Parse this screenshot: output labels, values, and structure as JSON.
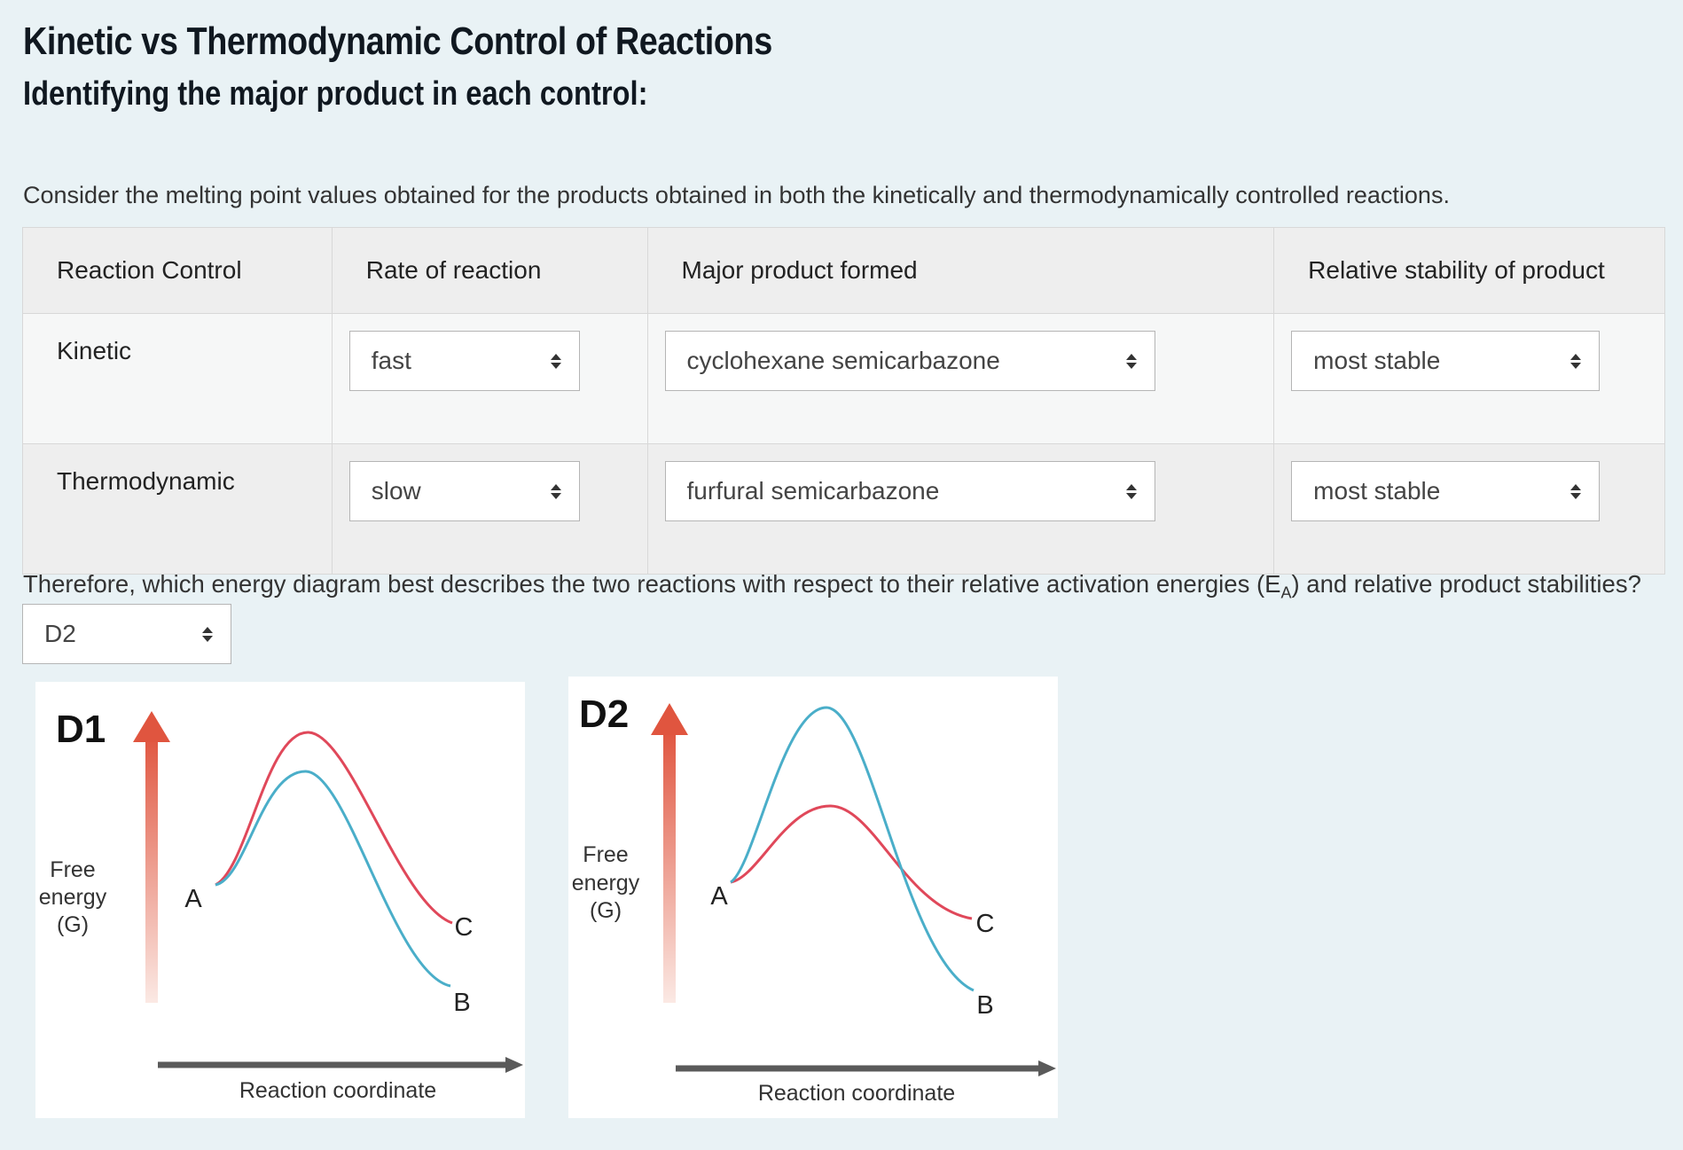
{
  "page": {
    "title": "Kinetic vs Thermodynamic Control of Reactions",
    "subtitle": "Identifying the major product in each control:",
    "intro": "Consider the melting point values obtained for the products obtained in both the kinetically and thermodynamically controlled reactions."
  },
  "table": {
    "headers": [
      "Reaction Control",
      "Rate of reaction",
      "Major product formed",
      "Relative stability of product"
    ],
    "rows": [
      {
        "control": "Kinetic",
        "rate": "fast",
        "product": "cyclohexane semicarbazone",
        "stability": "most stable"
      },
      {
        "control": "Thermodynamic",
        "rate": "slow",
        "product": "furfural semicarbazone",
        "stability": "most stable"
      }
    ]
  },
  "question": {
    "text_before": "Therefore, which energy diagram best describes the two reactions with respect to their relative activation energies (E",
    "subscript": "A",
    "text_after": ") and relative product stabilities?",
    "selected": "D2"
  },
  "diagrams": [
    {
      "label": "D1",
      "ylabel_line1": "Free",
      "ylabel_line2": "energy",
      "ylabel_line3": "(G)",
      "xlabel": "Reaction coordinate",
      "point_a": "A",
      "point_b": "B",
      "point_c": "C"
    },
    {
      "label": "D2",
      "ylabel_line1": "Free",
      "ylabel_line2": "energy",
      "ylabel_line3": "(G)",
      "xlabel": "Reaction coordinate",
      "point_a": "A",
      "point_b": "B",
      "point_c": "C"
    }
  ],
  "colors": {
    "red_curve": "#e0485a",
    "blue_curve": "#4aaec9",
    "axis_arrow_red": "#e0553f",
    "axis_gray": "#5a5a5a"
  }
}
